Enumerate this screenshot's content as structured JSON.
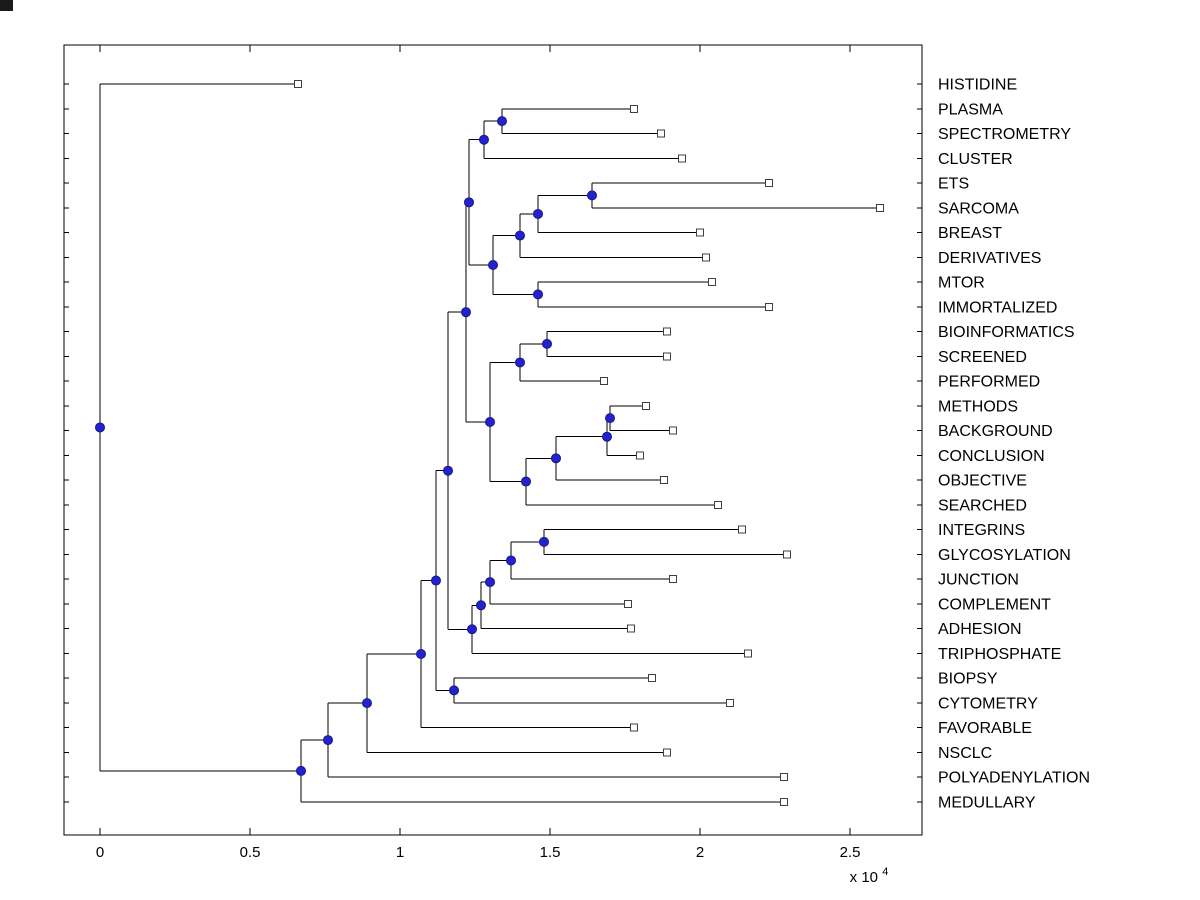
{
  "figure": {
    "background": "#ffffff"
  },
  "chart_data": {
    "type": "dendrogram",
    "subtype": "phylogenetic-tree",
    "title": "",
    "xlabel": "",
    "ylabel": "",
    "orientation": "left-to-right",
    "grid": false,
    "legend": false,
    "n_leaves": 30,
    "x_scale_factor": 10000,
    "xlim": [
      -0.12,
      2.74
    ],
    "x_tick_values": [
      0,
      0.5,
      1,
      1.5,
      2,
      2.5
    ],
    "x_tick_labels": [
      "0",
      "0.5",
      "1",
      "1.5",
      "2",
      "2.5"
    ],
    "x_axis_exponent_label": {
      "base": "x 10",
      "exponent": "4"
    },
    "leaf_labels": [
      "HISTIDINE",
      "PLASMA",
      "SPECTROMETRY",
      "CLUSTER",
      "ETS",
      "SARCOMA",
      "BREAST",
      "DERIVATIVES",
      "MTOR",
      "IMMORTALIZED",
      "BIOINFORMATICS",
      "SCREENED",
      "PERFORMED",
      "METHODS",
      "BACKGROUND",
      "CONCLUSION",
      "OBJECTIVE",
      "SEARCHED",
      "INTEGRINS",
      "GLYCOSYLATION",
      "JUNCTION",
      "COMPLEMENT",
      "ADHESION",
      "TRIPHOSPHATE",
      "BIOPSY",
      "CYTOMETRY",
      "FAVORABLE",
      "NSCLC",
      "POLYADENYLATION",
      "MEDULLARY"
    ],
    "styles": {
      "line_color": "#000000",
      "branch_node_fill": "#2323cd",
      "branch_node_stroke": "#16168a",
      "leaf_marker_fill": "#ffffff",
      "leaf_marker_stroke": "#3f3f3f",
      "text_color": "#000000",
      "axis_color": "#000000"
    },
    "tree": {
      "x": 0,
      "children": [
        {
          "leaf": "HISTIDINE",
          "x": 0.66
        },
        {
          "x": 0.67,
          "children": [
            {
              "x": 0.76,
              "children": [
                {
                  "x": 0.89,
                  "children": [
                    {
                      "x": 1.07,
                      "children": [
                        {
                          "x": 1.12,
                          "children": [
                            {
                              "x": 1.16,
                              "children": [
                                {
                                  "x": 1.22,
                                  "children": [
                                    {
                                      "x": 1.23,
                                      "children": [
                                        {
                                          "x": 1.28,
                                          "children": [
                                            {
                                              "x": 1.34,
                                              "children": [
                                                {
                                                  "leaf": "PLASMA",
                                                  "x": 1.78
                                                },
                                                {
                                                  "leaf": "SPECTROMETRY",
                                                  "x": 1.87
                                                }
                                              ]
                                            },
                                            {
                                              "leaf": "CLUSTER",
                                              "x": 1.94
                                            }
                                          ]
                                        },
                                        {
                                          "x": 1.31,
                                          "children": [
                                            {
                                              "x": 1.4,
                                              "children": [
                                                {
                                                  "x": 1.46,
                                                  "children": [
                                                    {
                                                      "x": 1.64,
                                                      "children": [
                                                        {
                                                          "leaf": "ETS",
                                                          "x": 2.23
                                                        },
                                                        {
                                                          "leaf": "SARCOMA",
                                                          "x": 2.6
                                                        }
                                                      ]
                                                    },
                                                    {
                                                      "leaf": "BREAST",
                                                      "x": 2.0
                                                    }
                                                  ]
                                                },
                                                {
                                                  "leaf": "DERIVATIVES",
                                                  "x": 2.02
                                                }
                                              ]
                                            },
                                            {
                                              "x": 1.46,
                                              "children": [
                                                {
                                                  "leaf": "MTOR",
                                                  "x": 2.04
                                                },
                                                {
                                                  "leaf": "IMMORTALIZED",
                                                  "x": 2.23
                                                }
                                              ]
                                            }
                                          ]
                                        }
                                      ]
                                    },
                                    {
                                      "x": 1.3,
                                      "children": [
                                        {
                                          "x": 1.4,
                                          "children": [
                                            {
                                              "x": 1.49,
                                              "children": [
                                                {
                                                  "leaf": "BIOINFORMATICS",
                                                  "x": 1.89
                                                },
                                                {
                                                  "leaf": "SCREENED",
                                                  "x": 1.89
                                                }
                                              ]
                                            },
                                            {
                                              "leaf": "PERFORMED",
                                              "x": 1.68
                                            }
                                          ]
                                        },
                                        {
                                          "x": 1.42,
                                          "children": [
                                            {
                                              "x": 1.52,
                                              "children": [
                                                {
                                                  "x": 1.69,
                                                  "children": [
                                                    {
                                                      "x": 1.7,
                                                      "children": [
                                                        {
                                                          "leaf": "METHODS",
                                                          "x": 1.82
                                                        },
                                                        {
                                                          "leaf": "BACKGROUND",
                                                          "x": 1.91
                                                        }
                                                      ]
                                                    },
                                                    {
                                                      "leaf": "CONCLUSION",
                                                      "x": 1.8
                                                    }
                                                  ]
                                                },
                                                {
                                                  "leaf": "OBJECTIVE",
                                                  "x": 1.88
                                                }
                                              ]
                                            },
                                            {
                                              "leaf": "SEARCHED",
                                              "x": 2.06
                                            }
                                          ]
                                        }
                                      ]
                                    }
                                  ]
                                },
                                {
                                  "x": 1.24,
                                  "children": [
                                    {
                                      "x": 1.27,
                                      "children": [
                                        {
                                          "x": 1.3,
                                          "children": [
                                            {
                                              "x": 1.37,
                                              "children": [
                                                {
                                                  "x": 1.48,
                                                  "children": [
                                                    {
                                                      "leaf": "INTEGRINS",
                                                      "x": 2.14
                                                    },
                                                    {
                                                      "leaf": "GLYCOSYLATION",
                                                      "x": 2.29
                                                    }
                                                  ]
                                                },
                                                {
                                                  "leaf": "JUNCTION",
                                                  "x": 1.91
                                                }
                                              ]
                                            },
                                            {
                                              "leaf": "COMPLEMENT",
                                              "x": 1.76
                                            }
                                          ]
                                        },
                                        {
                                          "leaf": "ADHESION",
                                          "x": 1.77
                                        }
                                      ]
                                    },
                                    {
                                      "leaf": "TRIPHOSPHATE",
                                      "x": 2.16
                                    }
                                  ]
                                }
                              ]
                            },
                            {
                              "x": 1.18,
                              "children": [
                                {
                                  "leaf": "BIOPSY",
                                  "x": 1.84
                                },
                                {
                                  "leaf": "CYTOMETRY",
                                  "x": 2.1
                                }
                              ]
                            }
                          ]
                        },
                        {
                          "leaf": "FAVORABLE",
                          "x": 1.78
                        }
                      ]
                    },
                    {
                      "leaf": "NSCLC",
                      "x": 1.89
                    }
                  ]
                },
                {
                  "leaf": "POLYADENYLATION",
                  "x": 2.28
                }
              ]
            },
            {
              "leaf": "MEDULLARY",
              "x": 2.28
            }
          ]
        }
      ]
    }
  }
}
